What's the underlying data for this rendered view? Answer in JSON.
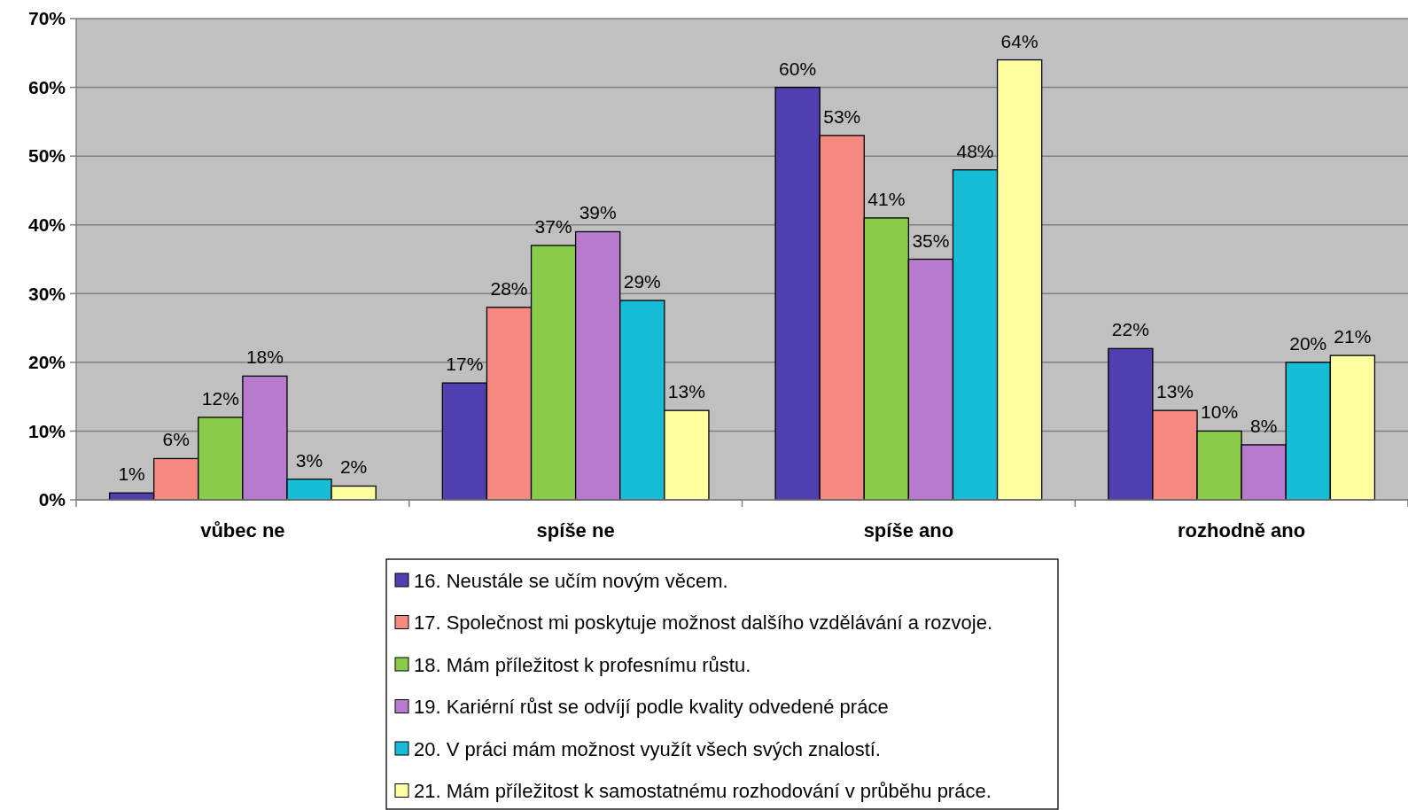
{
  "chart_data": {
    "type": "bar",
    "categories": [
      "vůbec ne",
      "spíše ne",
      "spíše ano",
      "rozhodně ano"
    ],
    "series": [
      {
        "name": "16. Neustále se učím novým věcem.",
        "color": "#4f3fb0",
        "values": [
          1,
          17,
          60,
          22
        ],
        "value_labels": [
          "1%",
          "17%",
          "60%",
          "22%"
        ]
      },
      {
        "name": "17. Společnost mi poskytuje možnost dalšího vzdělávání a rozvoje.",
        "color": "#f78a80",
        "values": [
          6,
          28,
          53,
          13
        ],
        "value_labels": [
          "6%",
          "28%",
          "53%",
          "13%"
        ]
      },
      {
        "name": "18. Mám příležitost k profesnímu růstu.",
        "color": "#88cc4a",
        "values": [
          12,
          37,
          41,
          10
        ],
        "value_labels": [
          "12%",
          "37%",
          "41%",
          "10%"
        ]
      },
      {
        "name": "19. Kariérní růst se odvíjí podle kvality odvedené práce",
        "color": "#b77acd",
        "values": [
          18,
          39,
          35,
          8
        ],
        "value_labels": [
          "18%",
          "39%",
          "35%",
          "8%"
        ]
      },
      {
        "name": "20. V práci mám možnost využít všech svých znalostí.",
        "color": "#17bcd6",
        "values": [
          3,
          29,
          48,
          20
        ],
        "value_labels": [
          "3%",
          "29%",
          "48%",
          "20%"
        ]
      },
      {
        "name": "21. Mám příležitost k samostatnému rozhodování v průběhu práce.",
        "color": "#ffffa0",
        "values": [
          2,
          13,
          64,
          21
        ],
        "value_labels": [
          "2%",
          "13%",
          "64%",
          "21%"
        ]
      }
    ],
    "ylim": [
      0,
      70
    ],
    "yticks": [
      {
        "value": 0,
        "label": "0%"
      },
      {
        "value": 10,
        "label": "10%"
      },
      {
        "value": 20,
        "label": "20%"
      },
      {
        "value": 30,
        "label": "30%"
      },
      {
        "value": 40,
        "label": "40%"
      },
      {
        "value": 50,
        "label": "50%"
      },
      {
        "value": 60,
        "label": "60%"
      },
      {
        "value": 70,
        "label": "70%"
      }
    ],
    "grid": "y",
    "legend": "bottom"
  }
}
